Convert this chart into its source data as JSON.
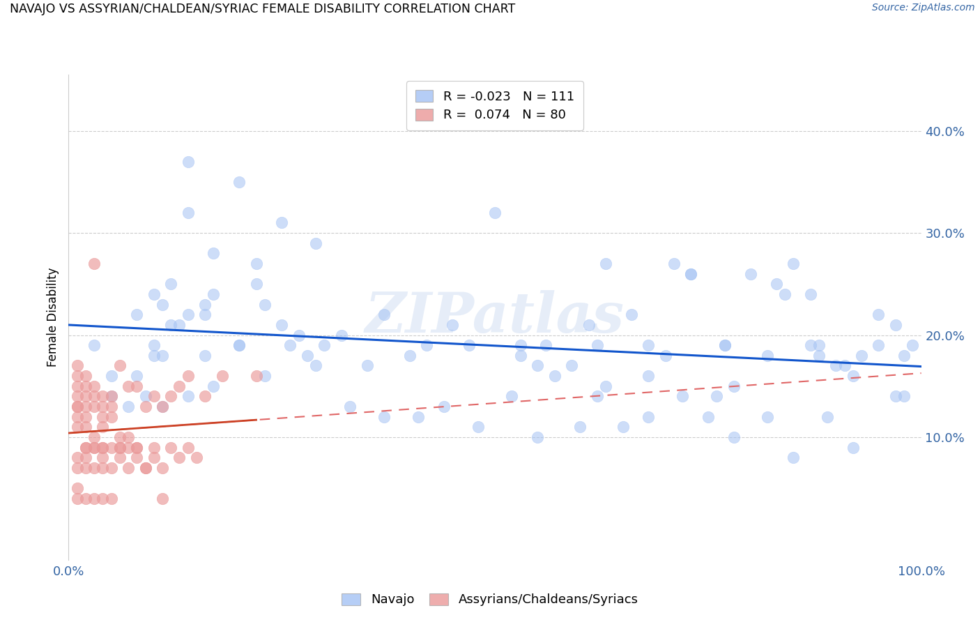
{
  "title": "NAVAJO VS ASSYRIAN/CHALDEAN/SYRIAC FEMALE DISABILITY CORRELATION CHART",
  "source": "Source: ZipAtlas.com",
  "ylabel": "Female Disability",
  "xlim": [
    0.0,
    1.0
  ],
  "ylim": [
    -0.02,
    0.455
  ],
  "legend_blue_R": "-0.023",
  "legend_blue_N": "111",
  "legend_pink_R": "0.074",
  "legend_pink_N": "80",
  "legend_label_blue": "Navajo",
  "legend_label_pink": "Assyrians/Chaldeans/Syriacs",
  "watermark": "ZIPatlas",
  "blue_color": "#a4c2f4",
  "pink_color": "#ea9999",
  "blue_line_color": "#1155cc",
  "pink_solid_color": "#cc4125",
  "pink_dash_color": "#e06666",
  "navajo_x": [
    0.14,
    0.14,
    0.17,
    0.2,
    0.22,
    0.17,
    0.25,
    0.29,
    0.08,
    0.1,
    0.11,
    0.13,
    0.1,
    0.12,
    0.14,
    0.16,
    0.1,
    0.12,
    0.16,
    0.2,
    0.22,
    0.23,
    0.25,
    0.27,
    0.29,
    0.32,
    0.35,
    0.37,
    0.4,
    0.42,
    0.45,
    0.5,
    0.53,
    0.56,
    0.59,
    0.61,
    0.63,
    0.66,
    0.68,
    0.71,
    0.73,
    0.76,
    0.78,
    0.8,
    0.83,
    0.85,
    0.87,
    0.9,
    0.92,
    0.95,
    0.97,
    0.99,
    0.05,
    0.07,
    0.09,
    0.11,
    0.47,
    0.55,
    0.63,
    0.68,
    0.73,
    0.77,
    0.84,
    0.87,
    0.91,
    0.95,
    0.98,
    0.03,
    0.05,
    0.08,
    0.11,
    0.14,
    0.17,
    0.2,
    0.23,
    0.26,
    0.28,
    0.33,
    0.37,
    0.41,
    0.44,
    0.48,
    0.52,
    0.55,
    0.57,
    0.6,
    0.62,
    0.65,
    0.68,
    0.72,
    0.75,
    0.78,
    0.82,
    0.85,
    0.89,
    0.92,
    0.97,
    0.16,
    0.3,
    0.7,
    0.82,
    0.88,
    0.93,
    0.53,
    0.77,
    0.62,
    0.98,
    0.88
  ],
  "navajo_y": [
    0.37,
    0.32,
    0.28,
    0.35,
    0.27,
    0.24,
    0.31,
    0.29,
    0.22,
    0.24,
    0.23,
    0.21,
    0.19,
    0.25,
    0.22,
    0.23,
    0.18,
    0.21,
    0.22,
    0.19,
    0.25,
    0.23,
    0.21,
    0.2,
    0.17,
    0.2,
    0.17,
    0.22,
    0.18,
    0.19,
    0.21,
    0.32,
    0.18,
    0.19,
    0.17,
    0.21,
    0.15,
    0.22,
    0.16,
    0.27,
    0.26,
    0.14,
    0.15,
    0.26,
    0.25,
    0.27,
    0.24,
    0.17,
    0.16,
    0.22,
    0.21,
    0.19,
    0.14,
    0.13,
    0.14,
    0.13,
    0.19,
    0.17,
    0.27,
    0.19,
    0.26,
    0.19,
    0.24,
    0.19,
    0.17,
    0.19,
    0.14,
    0.19,
    0.16,
    0.16,
    0.18,
    0.14,
    0.15,
    0.19,
    0.16,
    0.19,
    0.18,
    0.13,
    0.12,
    0.12,
    0.13,
    0.11,
    0.14,
    0.1,
    0.16,
    0.11,
    0.14,
    0.11,
    0.12,
    0.14,
    0.12,
    0.1,
    0.12,
    0.08,
    0.12,
    0.09,
    0.14,
    0.18,
    0.19,
    0.18,
    0.18,
    0.18,
    0.18,
    0.19,
    0.19,
    0.19,
    0.18,
    0.19
  ],
  "acs_x": [
    0.01,
    0.01,
    0.01,
    0.01,
    0.01,
    0.01,
    0.01,
    0.01,
    0.02,
    0.02,
    0.02,
    0.02,
    0.02,
    0.02,
    0.03,
    0.03,
    0.03,
    0.03,
    0.04,
    0.04,
    0.04,
    0.04,
    0.05,
    0.05,
    0.05,
    0.06,
    0.06,
    0.07,
    0.07,
    0.08,
    0.08,
    0.09,
    0.1,
    0.11,
    0.12,
    0.13,
    0.14,
    0.16,
    0.18,
    0.01,
    0.01,
    0.02,
    0.02,
    0.03,
    0.03,
    0.04,
    0.04,
    0.05,
    0.06,
    0.07,
    0.08,
    0.09,
    0.1,
    0.11,
    0.12,
    0.13,
    0.14,
    0.15,
    0.03,
    0.02,
    0.02,
    0.03,
    0.04,
    0.04,
    0.05,
    0.06,
    0.06,
    0.07,
    0.08,
    0.09,
    0.1,
    0.11,
    0.22,
    0.01,
    0.01,
    0.02,
    0.03,
    0.04,
    0.05
  ],
  "acs_y": [
    0.15,
    0.14,
    0.13,
    0.12,
    0.16,
    0.17,
    0.13,
    0.11,
    0.15,
    0.14,
    0.13,
    0.12,
    0.16,
    0.11,
    0.15,
    0.14,
    0.13,
    0.1,
    0.14,
    0.13,
    0.12,
    0.11,
    0.14,
    0.13,
    0.12,
    0.17,
    0.1,
    0.15,
    0.1,
    0.15,
    0.09,
    0.13,
    0.14,
    0.13,
    0.14,
    0.15,
    0.16,
    0.14,
    0.16,
    0.07,
    0.08,
    0.07,
    0.08,
    0.07,
    0.09,
    0.07,
    0.08,
    0.07,
    0.08,
    0.07,
    0.08,
    0.07,
    0.08,
    0.07,
    0.09,
    0.08,
    0.09,
    0.08,
    0.27,
    0.09,
    0.09,
    0.09,
    0.09,
    0.09,
    0.09,
    0.09,
    0.09,
    0.09,
    0.09,
    0.07,
    0.09,
    0.04,
    0.16,
    0.05,
    0.04,
    0.04,
    0.04,
    0.04,
    0.04
  ]
}
